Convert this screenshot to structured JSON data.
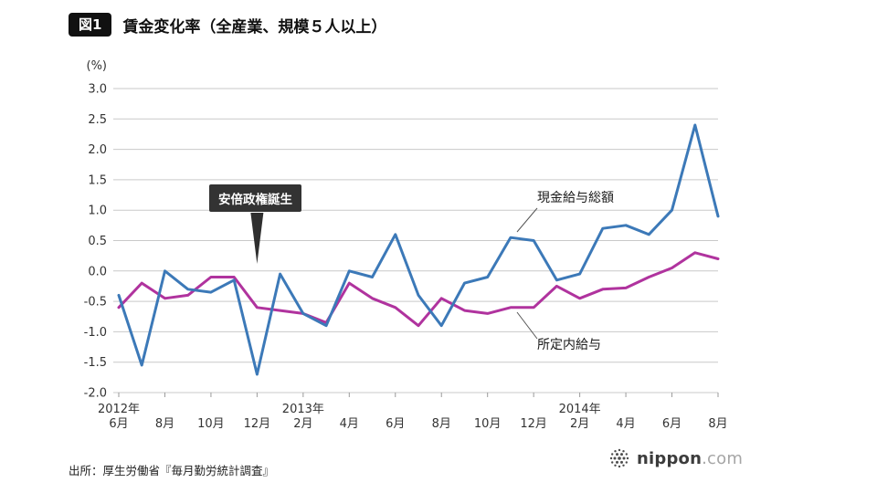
{
  "figure": {
    "badge": "図1",
    "title": "賃金変化率（全産業、規模５人以上）"
  },
  "source_note": "出所：厚生労働省『毎月勤労統計調査』",
  "logo": {
    "name": "nippon",
    "tld": ".com"
  },
  "chart_data": {
    "type": "line",
    "ylabel": "(%)",
    "ylim": [
      -2.0,
      3.0
    ],
    "grid": true,
    "yticks": [
      "3.0",
      "2.5",
      "2.0",
      "1.5",
      "1.0",
      "0.5",
      "0.0",
      "-0.5",
      "-1.0",
      "-1.5",
      "-2.0"
    ],
    "x": [
      "2012-06",
      "2012-07",
      "2012-08",
      "2012-09",
      "2012-10",
      "2012-11",
      "2012-12",
      "2013-01",
      "2013-02",
      "2013-03",
      "2013-04",
      "2013-05",
      "2013-06",
      "2013-07",
      "2013-08",
      "2013-09",
      "2013-10",
      "2013-11",
      "2013-12",
      "2014-01",
      "2014-02",
      "2014-03",
      "2014-04",
      "2014-05",
      "2014-06",
      "2014-07",
      "2014-08"
    ],
    "x_labels": [
      {
        "i": 0,
        "month": "6月",
        "year": "2012年"
      },
      {
        "i": 2,
        "month": "8月"
      },
      {
        "i": 4,
        "month": "10月"
      },
      {
        "i": 6,
        "month": "12月"
      },
      {
        "i": 8,
        "month": "2月",
        "year": "2013年"
      },
      {
        "i": 10,
        "month": "4月"
      },
      {
        "i": 12,
        "month": "6月"
      },
      {
        "i": 14,
        "month": "8月"
      },
      {
        "i": 16,
        "month": "10月"
      },
      {
        "i": 18,
        "month": "12月"
      },
      {
        "i": 20,
        "month": "2月",
        "year": "2014年"
      },
      {
        "i": 22,
        "month": "4月"
      },
      {
        "i": 24,
        "month": "6月"
      },
      {
        "i": 26,
        "month": "8月"
      }
    ],
    "series": [
      {
        "id": "cash-total",
        "name": "現金給与総額",
        "color": "#3c79b8",
        "values": [
          -0.4,
          -1.55,
          0.0,
          -0.3,
          -0.35,
          -0.15,
          -1.7,
          -0.05,
          -0.7,
          -0.9,
          0.0,
          -0.1,
          0.6,
          -0.4,
          -0.9,
          -0.2,
          -0.1,
          0.55,
          0.5,
          -0.15,
          -0.05,
          0.7,
          0.75,
          0.6,
          1.0,
          2.4,
          0.9
        ]
      },
      {
        "id": "scheduled",
        "name": "所定内給与",
        "color": "#b0339e",
        "values": [
          -0.6,
          -0.2,
          -0.45,
          -0.4,
          -0.1,
          -0.1,
          -0.6,
          -0.65,
          -0.7,
          -0.85,
          -0.2,
          -0.45,
          -0.6,
          -0.9,
          -0.45,
          -0.65,
          -0.7,
          -0.6,
          -0.6,
          -0.25,
          -0.45,
          -0.3,
          -0.28,
          -0.1,
          0.05,
          0.3,
          0.2
        ]
      }
    ],
    "annotation": {
      "text": "安倍政権誕生",
      "x_index": 6
    }
  }
}
